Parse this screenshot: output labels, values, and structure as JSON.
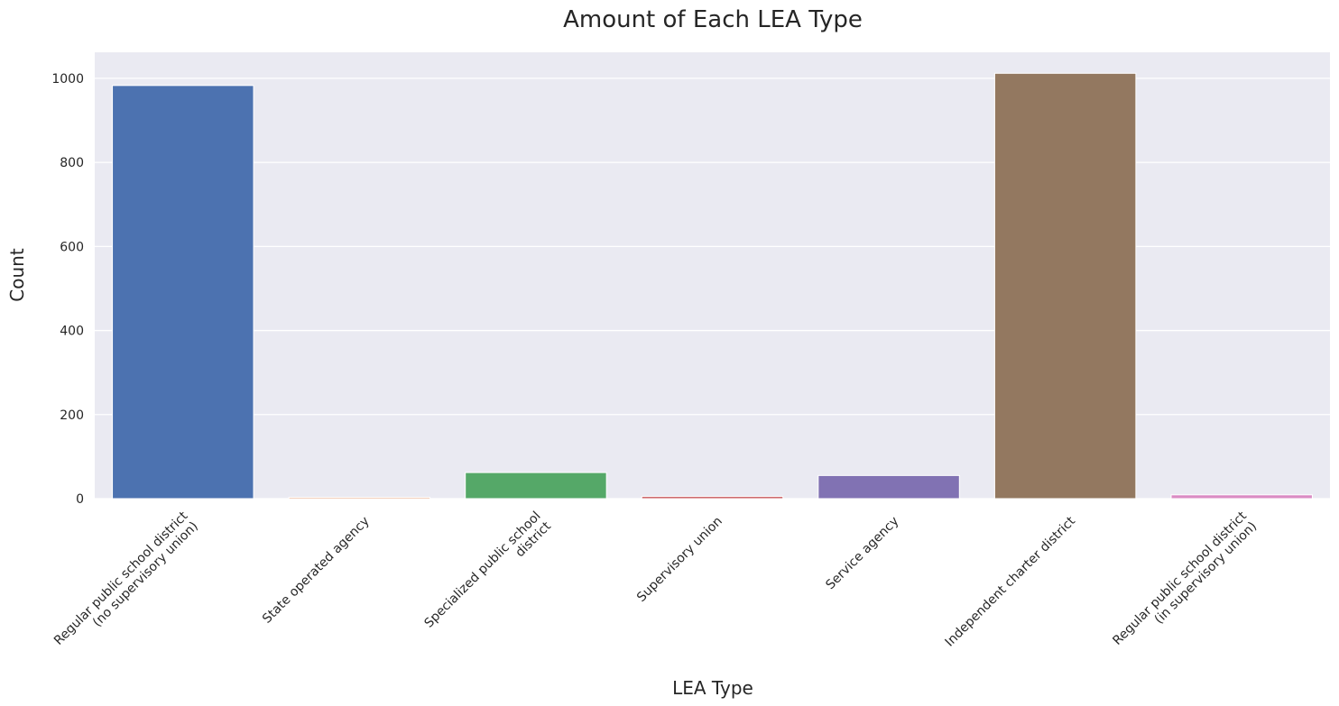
{
  "chart_data": {
    "type": "bar",
    "title": "Amount of Each LEA Type",
    "xlabel": "LEA Type",
    "ylabel": "Count",
    "categories": [
      "Regular public school district (no supervisory union)",
      "State operated agency",
      "Specialized public school district",
      "Supervisory union",
      "Service agency",
      "Independent charter district",
      "Regular public school district (in supervisory union)"
    ],
    "category_lines": [
      [
        "Regular public school district",
        "(no supervisory union)"
      ],
      [
        "State operated agency"
      ],
      [
        "Specialized public school",
        "district"
      ],
      [
        "Supervisory union"
      ],
      [
        "Service agency"
      ],
      [
        "Independent charter district"
      ],
      [
        "Regular public school district",
        "(in supervisory union)"
      ]
    ],
    "values": [
      983,
      3,
      62,
      5,
      55,
      1012,
      9
    ],
    "colors": [
      "#4c72b0",
      "#dd8452",
      "#55a868",
      "#c44e52",
      "#8172b3",
      "#937860",
      "#da8bc3"
    ],
    "yticks": [
      0,
      200,
      400,
      600,
      800,
      1000
    ],
    "ylim": [
      0,
      1062
    ],
    "grid": true,
    "background": "#eaeaf2"
  }
}
